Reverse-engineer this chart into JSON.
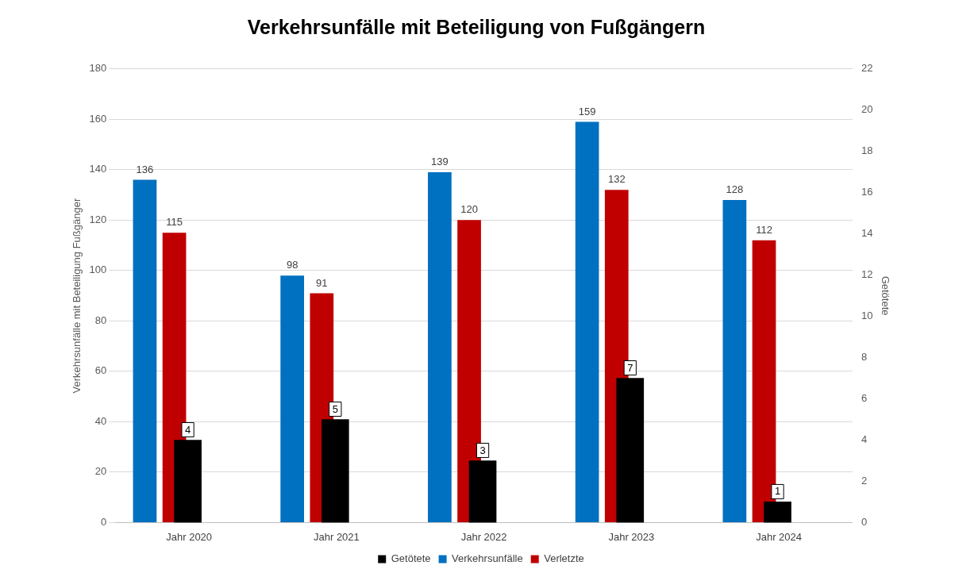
{
  "chart_data": {
    "type": "bar",
    "title": "Verkehrsunfälle mit Beteiligung von Fußgängern",
    "ylabel": "Verkehrsunfälle mit Beteiligung Fußgänger",
    "y2label": "Getötete",
    "categories": [
      "Jahr 2020",
      "Jahr 2021",
      "Jahr 2022",
      "Jahr 2023",
      "Jahr 2024"
    ],
    "series": [
      {
        "name": "Verkehrsunfälle",
        "color": "#0070c0",
        "values": [
          136,
          98,
          139,
          159,
          128
        ]
      },
      {
        "name": "Verletzte",
        "color": "#c00000",
        "values": [
          115,
          91,
          120,
          132,
          112
        ]
      },
      {
        "name": "Getötete",
        "color": "#000000",
        "values": [
          4,
          5,
          3,
          7,
          1
        ],
        "axis": "y2"
      }
    ],
    "ylim": [
      0,
      180
    ],
    "yticks": [
      0,
      20,
      40,
      60,
      80,
      100,
      120,
      140,
      160,
      180
    ],
    "y2lim": [
      0,
      22
    ],
    "y2ticks": [
      0,
      2,
      4,
      6,
      8,
      10,
      12,
      14,
      16,
      18,
      20,
      22
    ],
    "grid": "y",
    "legend": "bottom",
    "data_labels": true
  }
}
